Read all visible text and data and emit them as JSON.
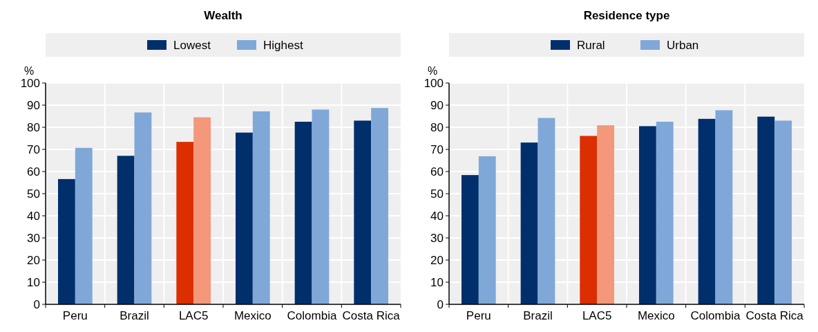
{
  "chart_data": [
    {
      "type": "bar",
      "title": "Wealth",
      "ylabel": "%",
      "categories": [
        "Peru",
        "Brazil",
        "LAC5",
        "Mexico",
        "Colombia",
        "Costa Rica"
      ],
      "series": [
        {
          "name": "Lowest",
          "color": "#002f6c",
          "colors": [
            "#002f6c",
            "#002f6c",
            "#dc2e00",
            "#002f6c",
            "#002f6c",
            "#002f6c"
          ],
          "values": [
            56.6,
            67.1,
            73.4,
            77.6,
            82.5,
            83.0
          ]
        },
        {
          "name": "Highest",
          "color": "#7fa8d8",
          "colors": [
            "#7fa8d8",
            "#7fa8d8",
            "#f4977a",
            "#7fa8d8",
            "#7fa8d8",
            "#7fa8d8"
          ],
          "values": [
            70.7,
            86.7,
            84.5,
            87.2,
            88.0,
            88.7
          ]
        }
      ],
      "ylim": [
        0,
        100
      ],
      "yticks": [
        0,
        10,
        20,
        30,
        40,
        50,
        60,
        70,
        80,
        90,
        100
      ],
      "grid": true,
      "legend": "top"
    },
    {
      "type": "bar",
      "title": "Residence type",
      "ylabel": "%",
      "categories": [
        "Peru",
        "Brazil",
        "LAC5",
        "Mexico",
        "Colombia",
        "Costa Rica"
      ],
      "series": [
        {
          "name": "Rural",
          "color": "#002f6c",
          "colors": [
            "#002f6c",
            "#002f6c",
            "#dc2e00",
            "#002f6c",
            "#002f6c",
            "#002f6c"
          ],
          "values": [
            58.4,
            73.1,
            76.1,
            80.5,
            83.8,
            84.8
          ]
        },
        {
          "name": "Urban",
          "color": "#7fa8d8",
          "colors": [
            "#7fa8d8",
            "#7fa8d8",
            "#f4977a",
            "#7fa8d8",
            "#7fa8d8",
            "#7fa8d8"
          ],
          "values": [
            66.9,
            84.2,
            80.9,
            82.5,
            87.7,
            83.0
          ]
        }
      ],
      "ylim": [
        0,
        100
      ],
      "yticks": [
        0,
        10,
        20,
        30,
        40,
        50,
        60,
        70,
        80,
        90,
        100
      ],
      "grid": true,
      "legend": "top"
    }
  ]
}
